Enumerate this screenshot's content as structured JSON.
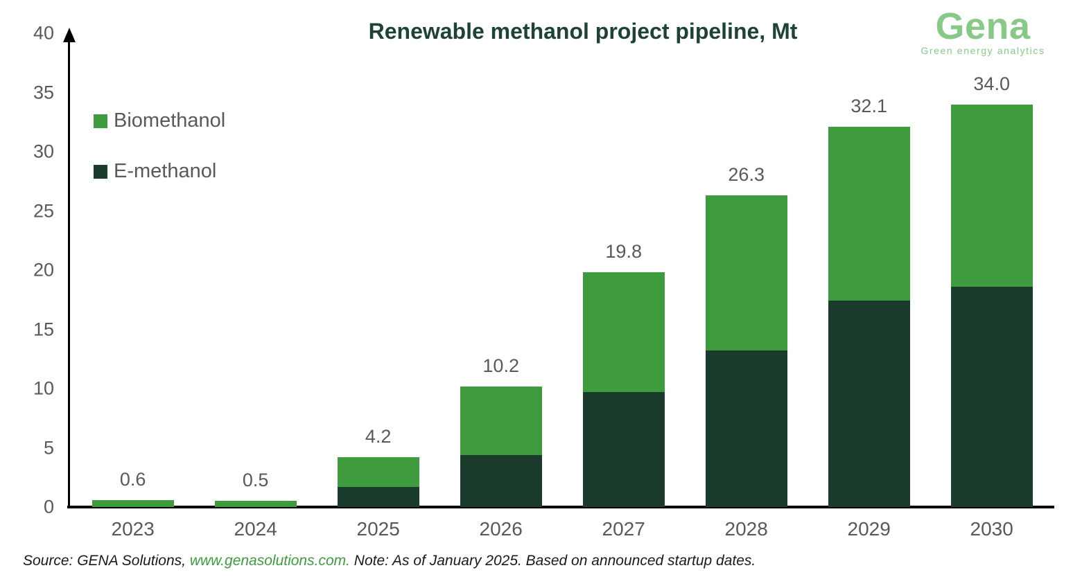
{
  "title": "Renewable methanol project pipeline, Mt",
  "logo": {
    "name": "Gena",
    "tagline": "Green energy analytics"
  },
  "legend": [
    {
      "label": "Biomethanol",
      "color": "#3e9b3e"
    },
    {
      "label": "E-methanol",
      "color": "#1b3c2c"
    }
  ],
  "source": {
    "prefix": "Source: GENA Solutions, ",
    "link": "www.genasolutions.com.",
    "suffix": " Note: As of January 2025. Based on announced startup dates."
  },
  "colors": {
    "accent_dark": "#1c4334",
    "logo_green": "#88c987",
    "axis_black": "#000000",
    "label_gray": "#595959"
  },
  "chart_data": {
    "type": "bar",
    "stacked": true,
    "title": "Renewable methanol project pipeline, Mt",
    "xlabel": "",
    "ylabel": "",
    "categories": [
      "2023",
      "2024",
      "2025",
      "2026",
      "2027",
      "2028",
      "2029",
      "2030"
    ],
    "series": [
      {
        "name": "E-methanol",
        "color": "#1b3c2c",
        "values": [
          0.0,
          0.0,
          1.7,
          4.4,
          9.7,
          13.2,
          17.4,
          18.6
        ]
      },
      {
        "name": "Biomethanol",
        "color": "#3e9b3e",
        "values": [
          0.6,
          0.5,
          2.5,
          5.8,
          10.1,
          13.1,
          14.7,
          15.4
        ]
      }
    ],
    "totals": [
      0.6,
      0.5,
      4.2,
      10.2,
      19.8,
      26.3,
      32.1,
      34.0
    ],
    "total_labels": [
      "0.6",
      "0.5",
      "4.2",
      "10.2",
      "19.8",
      "26.3",
      "32.1",
      "34.0"
    ],
    "ylim": [
      0,
      40
    ],
    "yticks": [
      0,
      5,
      10,
      15,
      20,
      25,
      30,
      35,
      40
    ],
    "grid": false,
    "legend_position": "top-left"
  }
}
